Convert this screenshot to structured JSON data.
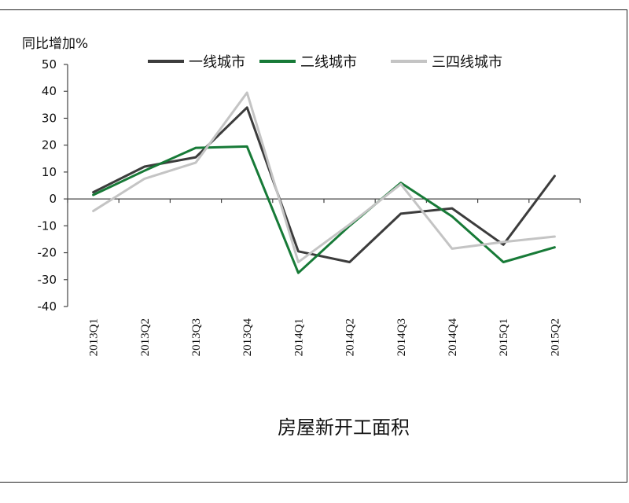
{
  "chart_data": {
    "type": "line",
    "title": "房屋新开工面积",
    "ylabel": "同比增加%",
    "xlabel": "",
    "ylim": [
      -40,
      50
    ],
    "yticks": [
      50,
      40,
      30,
      20,
      10,
      0,
      -10,
      -20,
      -30,
      -40
    ],
    "categories": [
      "2013Q1",
      "2013Q2",
      "2013Q3",
      "2013Q4",
      "2014Q1",
      "2014Q2",
      "2014Q3",
      "2014Q4",
      "2015Q1",
      "2015Q2"
    ],
    "legend_position": "top",
    "grid": false,
    "series": [
      {
        "name": "一线城市",
        "color": "#3c3c3c",
        "values": [
          2.5,
          12.0,
          15.5,
          34.0,
          -19.5,
          -23.5,
          -5.5,
          -3.5,
          -17.0,
          8.5
        ]
      },
      {
        "name": "二线城市",
        "color": "#177a37",
        "values": [
          1.5,
          10.5,
          19.0,
          19.5,
          -27.5,
          -10.0,
          6.0,
          -6.5,
          -23.5,
          -18.0
        ]
      },
      {
        "name": "三四线城市",
        "color": "#c4c4c4",
        "values": [
          -4.5,
          7.5,
          13.5,
          39.5,
          -23.5,
          -9.5,
          5.5,
          -18.5,
          -16.0,
          -14.0
        ]
      }
    ]
  }
}
